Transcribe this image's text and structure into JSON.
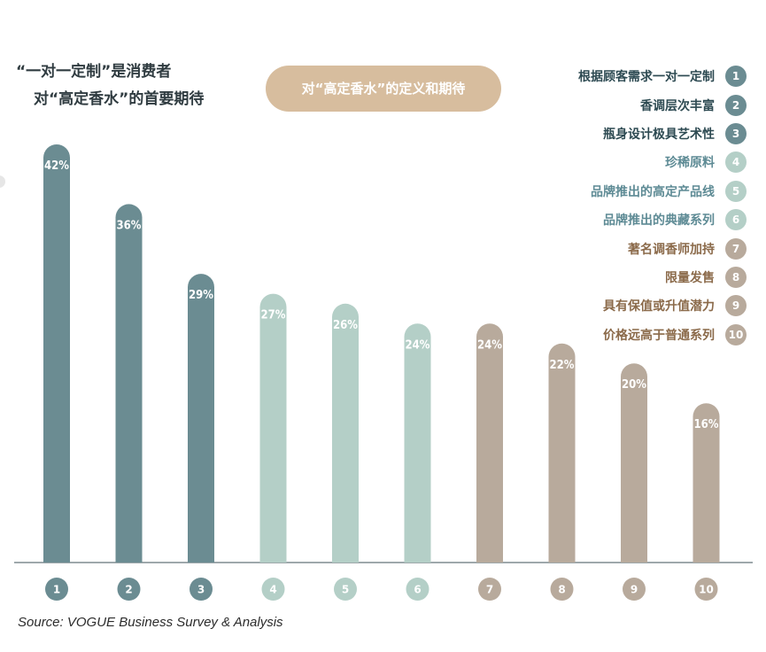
{
  "title_lines": [
    "“一对一定制”是消费者",
    "对“高定香水”的首要期待"
  ],
  "pill_label": "对“高定香水”的定义和期待",
  "source": "Source: VOGUE Business Survey & Analysis",
  "colors": {
    "dark": "#6b8c92",
    "light": "#b4cfc7",
    "tan": "#b8aa9c",
    "label_dark": "#2d4a52",
    "label_light": "#5e8b95",
    "label_tan": "#8b6a4a",
    "axis": "#7f8c8f"
  },
  "chart_data": {
    "type": "bar",
    "title": "对“高定香水”的定义和期待",
    "categories": [
      "1",
      "2",
      "3",
      "4",
      "5",
      "6",
      "7",
      "8",
      "9",
      "10"
    ],
    "values": [
      42,
      36,
      29,
      27,
      26,
      24,
      24,
      22,
      20,
      16
    ],
    "value_labels": [
      "42%",
      "36%",
      "29%",
      "27%",
      "26%",
      "24%",
      "24%",
      "22%",
      "20%",
      "16%"
    ],
    "legend": [
      {
        "num": "1",
        "label": "根据顾客需求一对一定制",
        "group": "dark"
      },
      {
        "num": "2",
        "label": "香调层次丰富",
        "group": "dark"
      },
      {
        "num": "3",
        "label": "瓶身设计极具艺术性",
        "group": "dark"
      },
      {
        "num": "4",
        "label": "珍稀原料",
        "group": "light"
      },
      {
        "num": "5",
        "label": "品牌推出的高定产品线",
        "group": "light"
      },
      {
        "num": "6",
        "label": "品牌推出的典藏系列",
        "group": "light"
      },
      {
        "num": "7",
        "label": "著名调香师加持",
        "group": "tan"
      },
      {
        "num": "8",
        "label": "限量发售",
        "group": "tan"
      },
      {
        "num": "9",
        "label": "具有保值或升值潜力",
        "group": "tan"
      },
      {
        "num": "10",
        "label": "价格远高于普通系列",
        "group": "tan"
      }
    ],
    "ylim": [
      0,
      42
    ],
    "legend_position": "top-right"
  }
}
